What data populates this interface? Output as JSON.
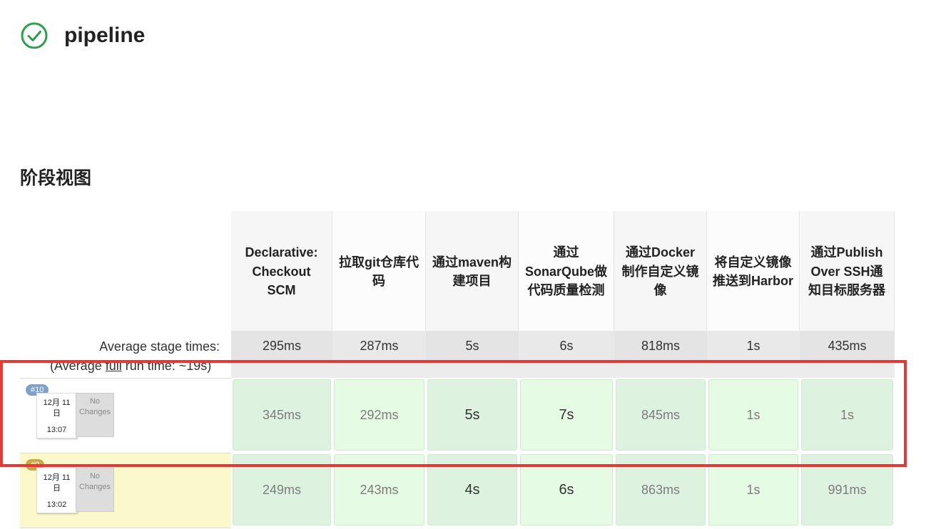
{
  "job": {
    "title": "pipeline",
    "status_icon": "success-check-icon",
    "status_color": "#2e9e4a"
  },
  "stage_view": {
    "section_title": "阶段视图",
    "average_label": "Average stage times:",
    "average_full_prefix": "(Average ",
    "average_full_link": "full",
    "average_full_suffix": " run time: ~19s)",
    "stages": [
      {
        "name": "Declarative: Checkout SCM",
        "avg": "295ms"
      },
      {
        "name": "拉取git仓库代码",
        "avg": "287ms"
      },
      {
        "name": "通过maven构建项目",
        "avg": "5s"
      },
      {
        "name": "通过SonarQube做代码质量检测",
        "avg": "6s"
      },
      {
        "name": "通过Docker制作自定义镜像",
        "avg": "818ms"
      },
      {
        "name": "将自定义镜像推送到Harbor",
        "avg": "1s"
      },
      {
        "name": "通过Publish Over SSH通知目标服务器",
        "avg": "435ms"
      }
    ],
    "builds": [
      {
        "number": "#10",
        "badge_color": "#7fa0c8",
        "date_line1": "12月 11",
        "date_line2": "日",
        "time": "13:07",
        "changes_line1": "No",
        "changes_line2": "Changes",
        "row_bg": "#ffffff",
        "durations": [
          "345ms",
          "292ms",
          "5s",
          "7s",
          "845ms",
          "1s",
          "1s"
        ]
      },
      {
        "number": "#9",
        "badge_color": "#c8a84a",
        "date_line1": "12月 11",
        "date_line2": "日",
        "time": "13:02",
        "changes_line1": "No",
        "changes_line2": "Changes",
        "row_bg": "#fbf8cc",
        "durations": [
          "249ms",
          "243ms",
          "4s",
          "6s",
          "863ms",
          "1s",
          "991ms"
        ]
      }
    ],
    "cell_colors": {
      "odd": "#def3df",
      "even": "#e6fbe4"
    },
    "highlight_color": "#e53935"
  }
}
